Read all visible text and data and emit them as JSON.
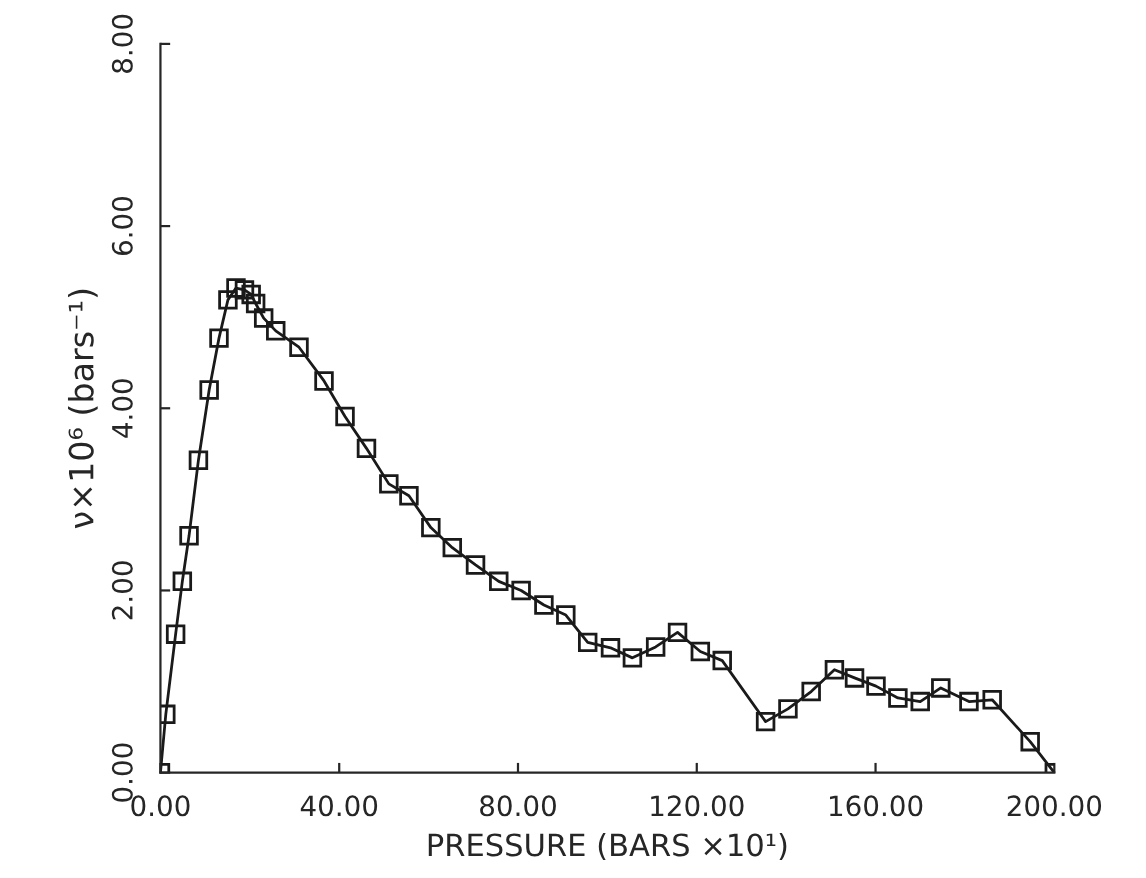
{
  "chart_data": {
    "type": "line",
    "xlabel": "PRESSURE (BARS ×10¹)",
    "ylabel": "ν×10⁶ (bars⁻¹)",
    "xlim": [
      0,
      200
    ],
    "ylim": [
      0,
      8
    ],
    "xticks": [
      {
        "value": 0,
        "label": "0.00"
      },
      {
        "value": 40,
        "label": "40.00"
      },
      {
        "value": 80,
        "label": "80.00"
      },
      {
        "value": 120,
        "label": "120.00"
      },
      {
        "value": 160,
        "label": "160.00"
      },
      {
        "value": 200,
        "label": "200.00"
      }
    ],
    "yticks": [
      {
        "value": 0,
        "label": "0.00"
      },
      {
        "value": 2,
        "label": "2.00"
      },
      {
        "value": 4,
        "label": "4.00"
      },
      {
        "value": 6,
        "label": "6.00"
      },
      {
        "value": 8,
        "label": "8.00"
      }
    ],
    "marker": "square",
    "line_style": "solid",
    "grid": false,
    "legend": false,
    "series": [
      {
        "color": "#1a1a1a",
        "x": [
          0,
          1.2,
          3.4,
          4.9,
          6.4,
          8.5,
          10.9,
          13.1,
          15.1,
          16.9,
          18.8,
          20.3,
          21.3,
          23.1,
          25.8,
          31,
          36.6,
          41.3,
          46.1,
          51.1,
          55.6,
          60.5,
          65.3,
          70.5,
          75.7,
          80.7,
          85.8,
          90.7,
          95.6,
          100.7,
          105.6,
          110.8,
          115.7,
          120.8,
          125.7,
          135.4,
          140.4,
          145.6,
          150.8,
          155.3,
          160.1,
          165,
          170,
          174.6,
          180.9,
          186.1,
          194.6,
          200
        ],
        "values": [
          0,
          0.64,
          1.52,
          2.1,
          2.6,
          3.43,
          4.2,
          4.77,
          5.19,
          5.32,
          5.3,
          5.25,
          5.15,
          4.99,
          4.85,
          4.67,
          4.3,
          3.91,
          3.56,
          3.17,
          3.04,
          2.69,
          2.47,
          2.28,
          2.1,
          2.0,
          1.84,
          1.73,
          1.43,
          1.37,
          1.26,
          1.38,
          1.54,
          1.33,
          1.23,
          0.56,
          0.7,
          0.89,
          1.13,
          1.04,
          0.95,
          0.82,
          0.78,
          0.93,
          0.78,
          0.8,
          0.34,
          0
        ]
      }
    ]
  }
}
